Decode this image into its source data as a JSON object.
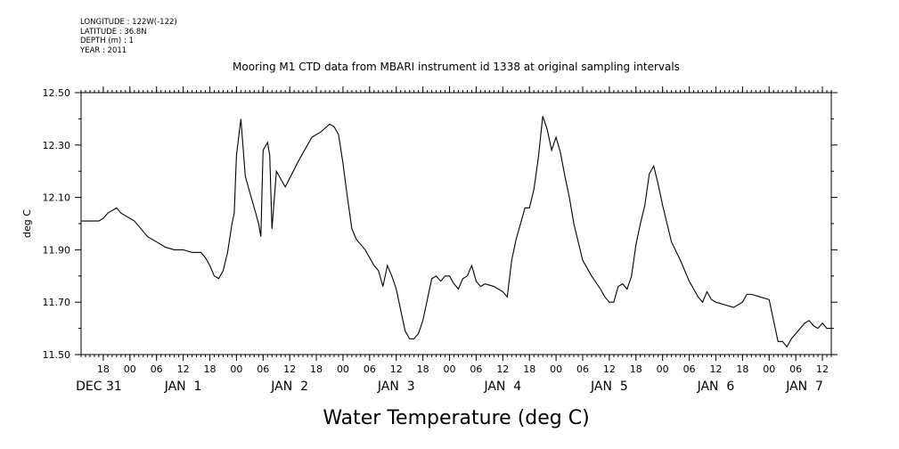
{
  "metadata_lines": {
    "longitude": "LONGITUDE : 122W(-122)",
    "latitude": "LATITUDE : 36.8N",
    "depth": "DEPTH (m) : 1",
    "year": "YEAR : 2011"
  },
  "chart_data": {
    "type": "line",
    "title": "Mooring M1 CTD data from MBARI instrument id 1338 at original sampling intervals",
    "bottom_title": "Water Temperature (deg C)",
    "ylabel": "deg C",
    "xlabel": "",
    "ylim": [
      11.5,
      12.5
    ],
    "yticks": [
      "11.50",
      "11.70",
      "11.90",
      "12.10",
      "12.30",
      "12.50"
    ],
    "xlim": [
      "2010-12-31T13:00",
      "2011-01-07T14:00"
    ],
    "hour_tick_labels": [
      "18",
      "00",
      "06",
      "12",
      "18",
      "00",
      "06",
      "12",
      "18",
      "00",
      "06",
      "12",
      "18",
      "00",
      "06",
      "12",
      "18",
      "00",
      "06",
      "12",
      "18",
      "00",
      "06",
      "12",
      "18",
      "00",
      "06",
      "12"
    ],
    "day_labels": [
      "DEC 31",
      "JAN  1",
      "JAN  2",
      "JAN  3",
      "JAN  4",
      "JAN  5",
      "JAN  6",
      "JAN  7"
    ],
    "grid": false,
    "series": [
      {
        "x": [
          "2010-12-31T13:00",
          "2010-12-31T14:00",
          "2010-12-31T15:00",
          "2010-12-31T16:00",
          "2010-12-31T17:00",
          "2010-12-31T18:00",
          "2010-12-31T19:00",
          "2010-12-31T20:00",
          "2010-12-31T21:00",
          "2010-12-31T22:00",
          "2010-12-31T23:00",
          "2011-01-01T00:00",
          "2011-01-01T01:00",
          "2011-01-01T02:00",
          "2011-01-01T03:00",
          "2011-01-01T04:00",
          "2011-01-01T06:00",
          "2011-01-01T08:00",
          "2011-01-01T10:00",
          "2011-01-01T12:00",
          "2011-01-01T14:00",
          "2011-01-01T16:00",
          "2011-01-01T17:00",
          "2011-01-01T18:00",
          "2011-01-01T19:00",
          "2011-01-01T20:00",
          "2011-01-01T21:00",
          "2011-01-01T22:00",
          "2011-01-01T23:00",
          "2011-01-01T23:30",
          "2011-01-02T00:00",
          "2011-01-02T01:00",
          "2011-01-02T02:00",
          "2011-01-02T03:00",
          "2011-01-02T04:00",
          "2011-01-02T05:00",
          "2011-01-02T05:30",
          "2011-01-02T06:00",
          "2011-01-02T07:00",
          "2011-01-02T07:30",
          "2011-01-02T08:00",
          "2011-01-02T09:00",
          "2011-01-02T11:00",
          "2011-01-02T14:00",
          "2011-01-02T17:00",
          "2011-01-02T19:00",
          "2011-01-02T21:00",
          "2011-01-02T22:00",
          "2011-01-02T23:00",
          "2011-01-03T00:00",
          "2011-01-03T01:00",
          "2011-01-03T02:00",
          "2011-01-03T03:00",
          "2011-01-03T05:00",
          "2011-01-03T07:00",
          "2011-01-03T08:00",
          "2011-01-03T09:00",
          "2011-01-03T10:00",
          "2011-01-03T11:00",
          "2011-01-03T12:00",
          "2011-01-03T13:00",
          "2011-01-03T14:00",
          "2011-01-03T15:00",
          "2011-01-03T16:00",
          "2011-01-03T17:00",
          "2011-01-03T18:00",
          "2011-01-03T20:00",
          "2011-01-03T21:00",
          "2011-01-03T22:00",
          "2011-01-03T23:00",
          "2011-01-04T00:00",
          "2011-01-04T01:00",
          "2011-01-04T02:00",
          "2011-01-04T03:00",
          "2011-01-04T04:00",
          "2011-01-04T05:00",
          "2011-01-04T06:00",
          "2011-01-04T07:00",
          "2011-01-04T08:00",
          "2011-01-04T10:00",
          "2011-01-04T12:00",
          "2011-01-04T13:00",
          "2011-01-04T14:00",
          "2011-01-04T15:00",
          "2011-01-04T17:00",
          "2011-01-04T18:00",
          "2011-01-04T19:00",
          "2011-01-04T20:00",
          "2011-01-04T21:00",
          "2011-01-04T22:00",
          "2011-01-04T23:00",
          "2011-01-05T00:00",
          "2011-01-05T01:00",
          "2011-01-05T02:00",
          "2011-01-05T03:00",
          "2011-01-05T04:00",
          "2011-01-05T06:00",
          "2011-01-05T08:00",
          "2011-01-05T10:00",
          "2011-01-05T11:00",
          "2011-01-05T12:00",
          "2011-01-05T13:00",
          "2011-01-05T14:00",
          "2011-01-05T15:00",
          "2011-01-05T16:00",
          "2011-01-05T17:00",
          "2011-01-05T18:00",
          "2011-01-05T19:00",
          "2011-01-05T20:00",
          "2011-01-05T21:00",
          "2011-01-05T22:00",
          "2011-01-05T23:00",
          "2011-01-06T00:00",
          "2011-01-06T02:00",
          "2011-01-06T04:00",
          "2011-01-06T06:00",
          "2011-01-06T08:00",
          "2011-01-06T09:00",
          "2011-01-06T10:00",
          "2011-01-06T11:00",
          "2011-01-06T12:00",
          "2011-01-06T14:00",
          "2011-01-06T16:00",
          "2011-01-06T18:00",
          "2011-01-06T19:00",
          "2011-01-06T20:00",
          "2011-01-06T22:00",
          "2011-01-07T00:00",
          "2011-01-07T01:00",
          "2011-01-07T02:00",
          "2011-01-07T03:00",
          "2011-01-07T04:00",
          "2011-01-07T05:00",
          "2011-01-07T06:00",
          "2011-01-07T07:00",
          "2011-01-07T08:00",
          "2011-01-07T09:00",
          "2011-01-07T10:00",
          "2011-01-07T11:00",
          "2011-01-07T12:00",
          "2011-01-07T13:00",
          "2011-01-07T14:00"
        ],
        "y": [
          12.01,
          12.01,
          12.01,
          12.01,
          12.01,
          12.02,
          12.04,
          12.05,
          12.06,
          12.04,
          12.03,
          12.02,
          12.01,
          11.99,
          11.97,
          11.95,
          11.93,
          11.91,
          11.9,
          11.9,
          11.89,
          11.89,
          11.87,
          11.84,
          11.8,
          11.79,
          11.82,
          11.89,
          12.0,
          12.04,
          12.26,
          12.4,
          12.18,
          12.12,
          12.06,
          12.0,
          11.95,
          12.28,
          12.31,
          12.26,
          11.98,
          12.2,
          12.14,
          12.24,
          12.33,
          12.35,
          12.38,
          12.37,
          12.34,
          12.23,
          12.1,
          11.98,
          11.94,
          11.9,
          11.84,
          11.82,
          11.76,
          11.84,
          11.8,
          11.75,
          11.67,
          11.59,
          11.56,
          11.56,
          11.58,
          11.63,
          11.79,
          11.8,
          11.78,
          11.8,
          11.8,
          11.77,
          11.75,
          11.79,
          11.8,
          11.84,
          11.78,
          11.76,
          11.77,
          11.76,
          11.74,
          11.72,
          11.86,
          11.94,
          12.06,
          12.06,
          12.13,
          12.25,
          12.41,
          12.36,
          12.28,
          12.33,
          12.27,
          12.18,
          12.1,
          12.0,
          11.86,
          11.8,
          11.75,
          11.72,
          11.7,
          11.7,
          11.76,
          11.77,
          11.75,
          11.8,
          11.92,
          12.0,
          12.07,
          12.19,
          12.22,
          12.15,
          12.07,
          11.93,
          11.86,
          11.78,
          11.72,
          11.7,
          11.74,
          11.71,
          11.7,
          11.69,
          11.68,
          11.7,
          11.73,
          11.73,
          11.72,
          11.71,
          11.63,
          11.55,
          11.55,
          11.53,
          11.56,
          11.58,
          11.6,
          11.62,
          11.63,
          11.61,
          11.6,
          11.62,
          11.6,
          11.6
        ]
      }
    ]
  }
}
